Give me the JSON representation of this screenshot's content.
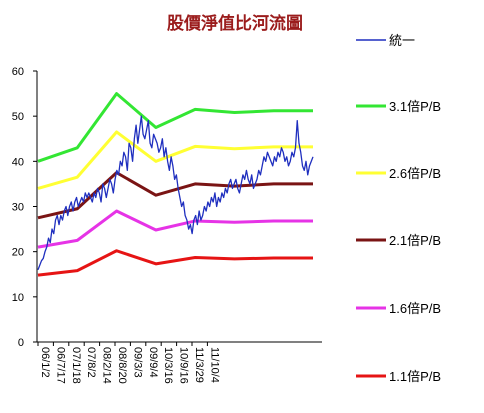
{
  "chart_data": {
    "type": "line",
    "title": "股價淨值比河流圖",
    "ylim": [
      0,
      60
    ],
    "yticks": [
      0,
      10,
      20,
      30,
      40,
      50,
      60
    ],
    "grid": false,
    "legend_position": "right",
    "x_tick_labels": [
      "06/1/2",
      "06/7/17",
      "07/1/18",
      "07/8/2",
      "08/2/14",
      "08/8/20",
      "09/3/3",
      "09/9/4",
      "10/3/16",
      "10/9/16",
      "11/3/29",
      "11/10/4"
    ],
    "series": [
      {
        "name": "統一",
        "color": "#1f2fbf",
        "values": [
          16,
          17,
          18,
          18.5,
          20,
          21,
          23,
          22,
          25,
          24,
          27,
          28,
          26,
          28,
          27,
          29,
          30,
          28,
          30,
          31,
          29,
          31,
          32,
          30,
          31,
          32,
          31,
          33,
          32,
          33,
          32,
          31,
          33,
          32,
          34,
          33,
          31,
          35,
          34,
          32,
          34,
          36,
          35,
          33,
          36,
          38,
          37,
          40,
          39,
          42,
          41,
          38,
          44,
          43,
          40,
          45,
          48,
          44,
          47,
          50,
          46,
          45,
          47,
          49,
          44,
          43,
          46,
          45,
          44,
          42,
          43,
          45,
          41,
          43,
          40,
          38,
          41,
          39,
          36,
          37,
          34,
          32,
          30,
          31,
          28,
          27,
          25,
          26,
          24,
          27,
          28,
          26,
          29,
          27,
          28,
          30,
          29,
          31,
          30,
          32,
          31,
          33,
          30,
          32,
          31,
          33,
          32,
          34,
          33,
          35,
          36,
          34,
          35,
          36,
          34,
          33,
          35,
          37,
          36,
          38,
          36,
          35,
          37,
          34,
          35,
          36,
          38,
          37,
          39,
          41,
          40,
          42,
          41,
          40,
          39,
          41,
          40,
          42,
          41,
          43,
          42,
          40,
          41,
          39,
          40,
          42,
          41,
          43,
          49,
          44,
          42,
          39,
          38,
          40,
          37,
          39,
          40,
          41
        ]
      },
      {
        "name": "3.1倍P/B",
        "color": "#33e633",
        "values": [
          40,
          43,
          55,
          47.5,
          51.5,
          50.8,
          51.2,
          51.2
        ]
      },
      {
        "name": "2.6倍P/B",
        "color": "#ffff33",
        "values": [
          34,
          36.5,
          46.5,
          40,
          43.3,
          42.8,
          43.2,
          43.2
        ]
      },
      {
        "name": "2.1倍P/B",
        "color": "#7a1414",
        "values": [
          27.5,
          29.5,
          37.5,
          32.5,
          35,
          34.5,
          35,
          35
        ]
      },
      {
        "name": "1.6倍P/B",
        "color": "#e633e6",
        "values": [
          21,
          22.5,
          29,
          24.8,
          26.8,
          26.5,
          26.8,
          26.8
        ]
      },
      {
        "name": "1.1倍P/B",
        "color": "#e61414",
        "values": [
          14.8,
          15.8,
          20.2,
          17.3,
          18.7,
          18.4,
          18.6,
          18.6
        ]
      }
    ]
  }
}
